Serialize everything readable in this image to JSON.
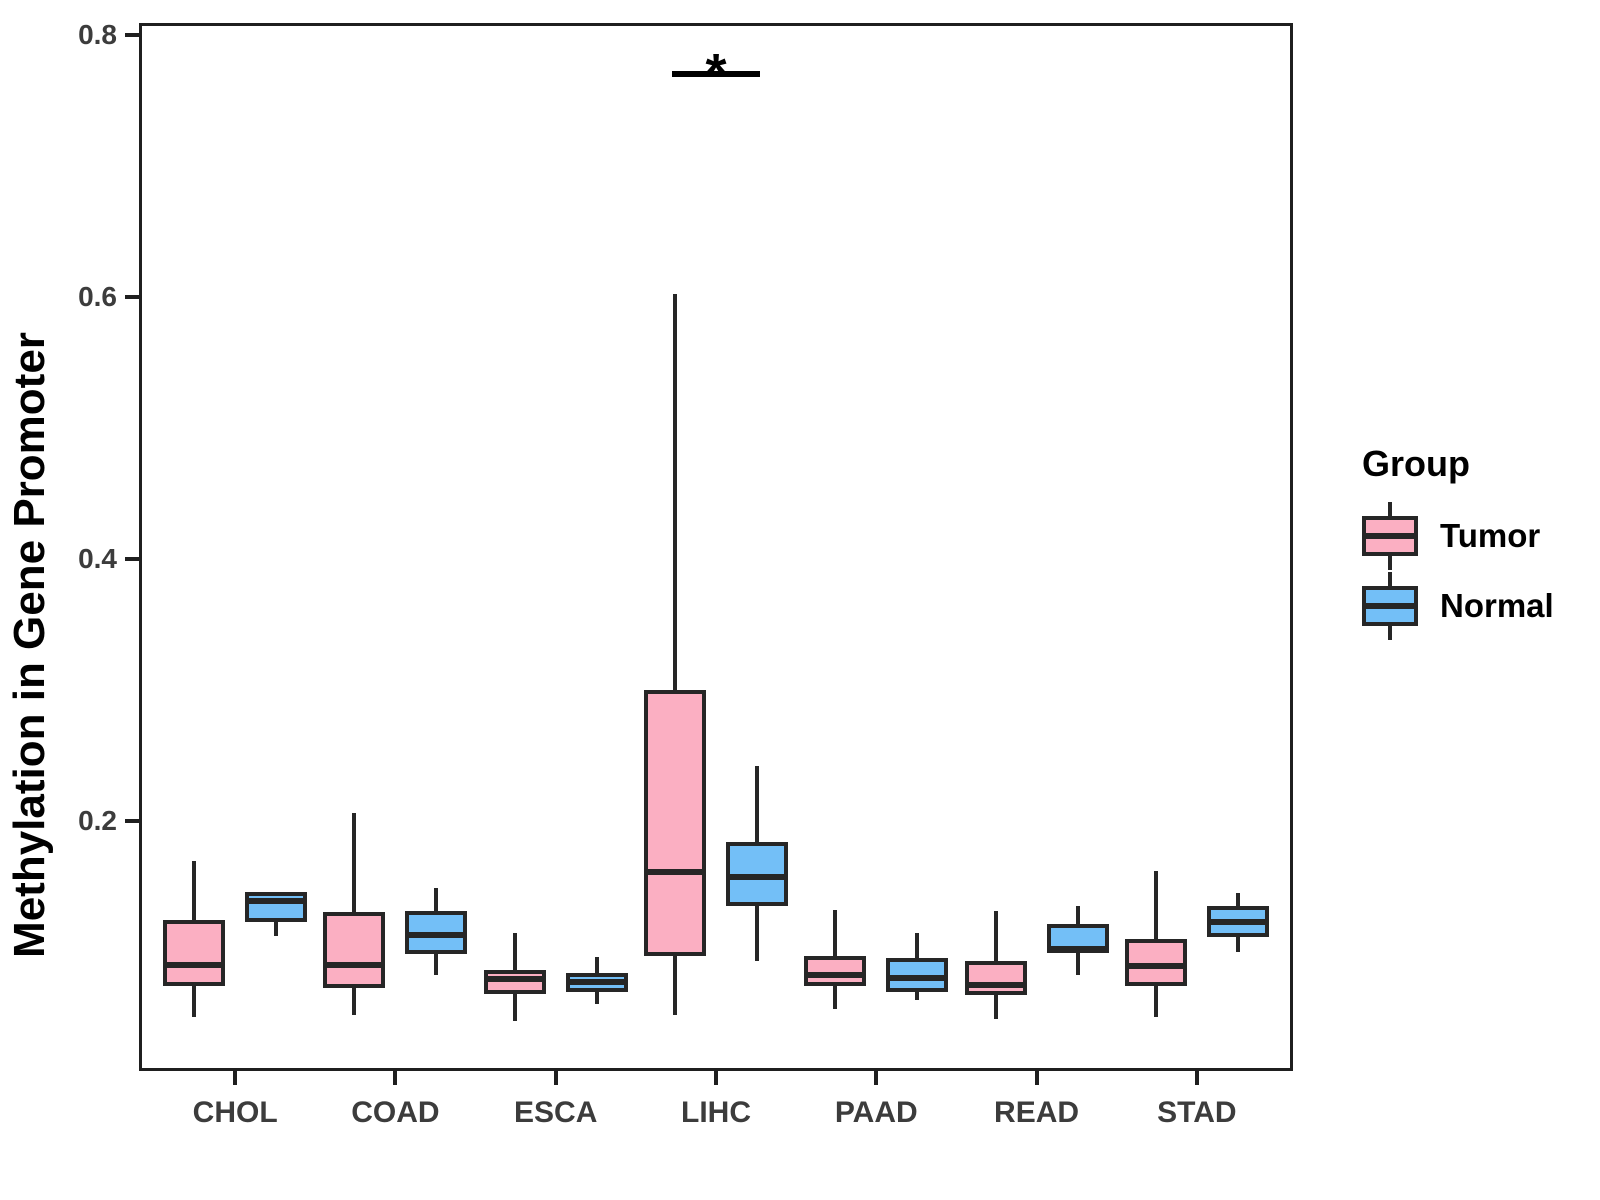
{
  "figure": {
    "background": "#ffffff"
  },
  "chart_data": {
    "type": "grouped_boxplot",
    "ylabel": "Methylation in Gene Promoter",
    "xlabel": "",
    "categories": [
      "CHOL",
      "COAD",
      "ESCA",
      "LIHC",
      "PAAD",
      "READ",
      "STAD"
    ],
    "y_ticks": [
      0.2,
      0.4,
      0.6,
      0.8
    ],
    "ylim": [
      0.009,
      0.809
    ],
    "grid": "off",
    "legend_position": "right",
    "legend_title": "Group",
    "series": [
      {
        "name": "Tumor",
        "color": "#FBAFC2",
        "boxes": [
          {
            "category": "CHOL",
            "min": 0.05,
            "q1": 0.074,
            "median": 0.09,
            "q3": 0.124,
            "max": 0.169
          },
          {
            "category": "COAD",
            "min": 0.052,
            "q1": 0.072,
            "median": 0.09,
            "q3": 0.13,
            "max": 0.206
          },
          {
            "category": "ESCA",
            "min": 0.047,
            "q1": 0.068,
            "median": 0.079,
            "q3": 0.086,
            "max": 0.114
          },
          {
            "category": "LIHC",
            "min": 0.052,
            "q1": 0.097,
            "median": 0.161,
            "q3": 0.3,
            "max": 0.602
          },
          {
            "category": "PAAD",
            "min": 0.056,
            "q1": 0.074,
            "median": 0.082,
            "q3": 0.097,
            "max": 0.132
          },
          {
            "category": "READ",
            "min": 0.049,
            "q1": 0.067,
            "median": 0.075,
            "q3": 0.093,
            "max": 0.131
          },
          {
            "category": "STAD",
            "min": 0.05,
            "q1": 0.074,
            "median": 0.089,
            "q3": 0.11,
            "max": 0.162
          }
        ]
      },
      {
        "name": "Normal",
        "color": "#73BFF7",
        "boxes": [
          {
            "category": "CHOL",
            "min": 0.112,
            "q1": 0.123,
            "median": 0.139,
            "q3": 0.146,
            "max": 0.146
          },
          {
            "category": "COAD",
            "min": 0.082,
            "q1": 0.098,
            "median": 0.113,
            "q3": 0.131,
            "max": 0.149
          },
          {
            "category": "ESCA",
            "min": 0.06,
            "q1": 0.069,
            "median": 0.077,
            "q3": 0.084,
            "max": 0.096
          },
          {
            "category": "LIHC",
            "min": 0.093,
            "q1": 0.135,
            "median": 0.157,
            "q3": 0.184,
            "max": 0.242
          },
          {
            "category": "PAAD",
            "min": 0.063,
            "q1": 0.069,
            "median": 0.08,
            "q3": 0.095,
            "max": 0.114
          },
          {
            "category": "READ",
            "min": 0.082,
            "q1": 0.099,
            "median": 0.102,
            "q3": 0.121,
            "max": 0.135
          },
          {
            "category": "STAD",
            "min": 0.1,
            "q1": 0.111,
            "median": 0.123,
            "q3": 0.135,
            "max": 0.145
          }
        ]
      }
    ],
    "significance": [
      {
        "category": "LIHC",
        "label": "*",
        "line_y": 0.77
      }
    ]
  },
  "style": {
    "box_border_color": "#262626",
    "axis_color": "#1f1f1f",
    "tick_label_color": "#3c3c3c",
    "text_color": "#000000"
  }
}
